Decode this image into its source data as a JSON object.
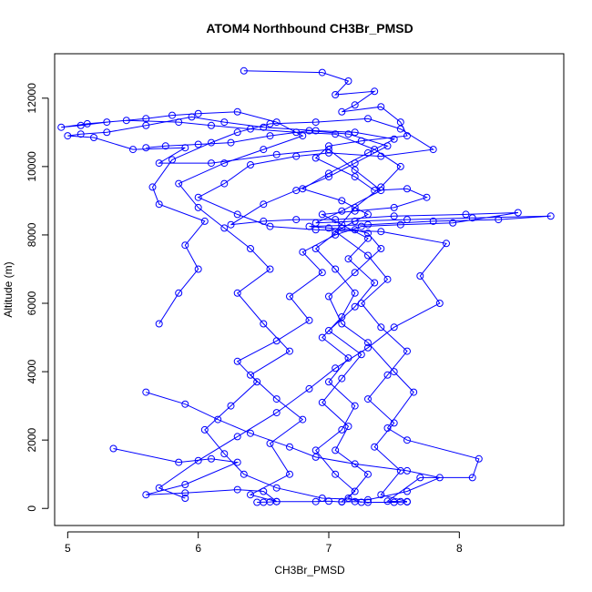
{
  "chart_data": {
    "type": "line",
    "title": "ATOM4 Northbound CH3Br_PMSD",
    "xlabel": "CH3Br_PMSD",
    "ylabel": "Altitude (m)",
    "xlim": [
      4.9,
      8.8
    ],
    "ylim": [
      -500,
      13300
    ],
    "xticks": [
      5,
      6,
      7,
      8
    ],
    "yticks": [
      0,
      2000,
      4000,
      6000,
      8000,
      10000,
      12000
    ],
    "grid": false,
    "legend": "none",
    "series_color": "#0000ff",
    "marker": "open-circle",
    "series": [
      {
        "values": [
          [
            6.5,
            180
          ],
          [
            6.45,
            180
          ],
          [
            6.55,
            190
          ],
          [
            6.6,
            200
          ],
          [
            6.9,
            200
          ],
          [
            7.0,
            210
          ],
          [
            7.1,
            190
          ],
          [
            7.2,
            200
          ],
          [
            7.3,
            180
          ],
          [
            7.5,
            180
          ],
          [
            7.6,
            190
          ],
          [
            7.55,
            200
          ],
          [
            7.45,
            210
          ],
          [
            7.7,
            900
          ],
          [
            8.1,
            900
          ],
          [
            8.15,
            1450
          ],
          [
            7.6,
            2000
          ],
          [
            7.45,
            2350
          ],
          [
            7.65,
            3400
          ],
          [
            7.5,
            4000
          ],
          [
            7.3,
            4850
          ],
          [
            7.1,
            5400
          ],
          [
            7.0,
            6200
          ],
          [
            7.2,
            6900
          ],
          [
            7.4,
            7600
          ],
          [
            7.3,
            8050
          ],
          [
            7.2,
            8150
          ],
          [
            7.0,
            8200
          ],
          [
            6.85,
            8250
          ],
          [
            7.3,
            8300
          ],
          [
            7.8,
            8400
          ],
          [
            8.3,
            8450
          ],
          [
            8.7,
            8550
          ],
          [
            8.1,
            8500
          ],
          [
            7.6,
            8450
          ],
          [
            7.2,
            8400
          ],
          [
            6.9,
            8350
          ],
          [
            7.1,
            8700
          ],
          [
            7.4,
            9300
          ],
          [
            7.2,
            9900
          ],
          [
            7.0,
            10500
          ],
          [
            6.6,
            10350
          ],
          [
            6.1,
            10100
          ],
          [
            5.7,
            10100
          ],
          [
            5.9,
            10550
          ],
          [
            5.5,
            10500
          ],
          [
            5.2,
            10850
          ],
          [
            5.0,
            10900
          ],
          [
            5.1,
            10950
          ],
          [
            5.3,
            11000
          ],
          [
            5.6,
            11200
          ],
          [
            5.95,
            11450
          ],
          [
            6.2,
            11300
          ],
          [
            6.5,
            11150
          ],
          [
            6.9,
            11050
          ],
          [
            7.2,
            11000
          ],
          [
            7.5,
            10800
          ],
          [
            7.3,
            10400
          ],
          [
            7.0,
            9800
          ],
          [
            6.8,
            9350
          ],
          [
            7.1,
            9000
          ],
          [
            7.3,
            8600
          ],
          [
            7.1,
            8200
          ],
          [
            6.9,
            7600
          ],
          [
            7.05,
            7000
          ],
          [
            7.2,
            6300
          ],
          [
            7.1,
            5600
          ],
          [
            6.95,
            5000
          ],
          [
            7.15,
            4400
          ],
          [
            7.0,
            3700
          ],
          [
            7.2,
            3000
          ],
          [
            7.1,
            2300
          ],
          [
            6.9,
            1700
          ],
          [
            7.05,
            1000
          ],
          [
            7.2,
            500
          ],
          [
            7.1,
            200
          ]
        ]
      },
      {
        "values": [
          [
            5.35,
            1750
          ],
          [
            5.85,
            1350
          ],
          [
            6.1,
            1450
          ],
          [
            6.3,
            1350
          ],
          [
            5.9,
            700
          ],
          [
            5.6,
            400
          ],
          [
            5.9,
            450
          ],
          [
            6.3,
            550
          ],
          [
            6.5,
            500
          ],
          [
            6.6,
            200
          ],
          [
            6.4,
            400
          ],
          [
            6.7,
            1000
          ],
          [
            6.55,
            1900
          ],
          [
            6.8,
            2600
          ],
          [
            6.6,
            3200
          ],
          [
            6.4,
            3900
          ],
          [
            6.7,
            4600
          ],
          [
            6.5,
            5400
          ],
          [
            6.3,
            6300
          ],
          [
            6.55,
            7000
          ],
          [
            6.4,
            7600
          ],
          [
            6.2,
            8200
          ],
          [
            6.0,
            8800
          ],
          [
            5.85,
            9500
          ],
          [
            6.2,
            10100
          ],
          [
            6.5,
            10500
          ],
          [
            6.8,
            10900
          ],
          [
            6.6,
            11300
          ],
          [
            6.3,
            11600
          ],
          [
            6.0,
            11550
          ],
          [
            5.8,
            11500
          ],
          [
            5.6,
            11400
          ],
          [
            5.3,
            11300
          ],
          [
            5.1,
            11200
          ],
          [
            4.95,
            11150
          ],
          [
            5.15,
            11250
          ],
          [
            5.45,
            11350
          ],
          [
            5.85,
            11300
          ],
          [
            6.1,
            11200
          ],
          [
            6.4,
            11100
          ],
          [
            6.75,
            11000
          ],
          [
            7.05,
            10950
          ],
          [
            7.35,
            10500
          ],
          [
            7.55,
            10000
          ],
          [
            7.4,
            9400
          ],
          [
            7.2,
            8800
          ],
          [
            7.05,
            8100
          ],
          [
            7.3,
            7400
          ],
          [
            7.45,
            6700
          ],
          [
            7.25,
            6000
          ],
          [
            7.4,
            5300
          ],
          [
            7.6,
            4600
          ],
          [
            7.45,
            3900
          ],
          [
            7.3,
            3200
          ],
          [
            7.5,
            2500
          ],
          [
            7.35,
            1800
          ],
          [
            7.55,
            1100
          ],
          [
            7.4,
            400
          ],
          [
            7.6,
            200
          ]
        ]
      },
      {
        "values": [
          [
            5.7,
            5400
          ],
          [
            5.85,
            6300
          ],
          [
            6.0,
            7000
          ],
          [
            5.9,
            7700
          ],
          [
            6.05,
            8400
          ],
          [
            5.7,
            8900
          ],
          [
            5.65,
            9400
          ],
          [
            5.8,
            10200
          ],
          [
            6.1,
            10700
          ],
          [
            6.3,
            11000
          ],
          [
            6.55,
            11250
          ],
          [
            6.9,
            11300
          ],
          [
            7.3,
            11400
          ],
          [
            7.55,
            11100
          ],
          [
            7.8,
            10500
          ],
          [
            7.4,
            10300
          ],
          [
            7.0,
            10400
          ],
          [
            6.75,
            10300
          ],
          [
            6.4,
            10050
          ],
          [
            6.2,
            9500
          ],
          [
            6.0,
            9100
          ],
          [
            6.3,
            8600
          ],
          [
            6.55,
            8250
          ],
          [
            6.9,
            8150
          ],
          [
            7.4,
            8100
          ],
          [
            7.9,
            7750
          ],
          [
            7.7,
            6800
          ],
          [
            7.85,
            6000
          ],
          [
            7.5,
            5300
          ],
          [
            7.3,
            4700
          ],
          [
            7.05,
            4100
          ],
          [
            6.85,
            3500
          ],
          [
            6.6,
            2800
          ],
          [
            6.3,
            2100
          ],
          [
            6.0,
            1400
          ],
          [
            5.7,
            600
          ],
          [
            5.9,
            300
          ]
        ]
      },
      {
        "values": [
          [
            6.35,
            12800
          ],
          [
            6.95,
            12750
          ],
          [
            7.15,
            12500
          ],
          [
            7.05,
            12100
          ],
          [
            7.35,
            12200
          ],
          [
            7.2,
            11800
          ],
          [
            7.1,
            11600
          ],
          [
            7.4,
            11750
          ],
          [
            7.55,
            11300
          ],
          [
            7.6,
            10900
          ],
          [
            7.25,
            10750
          ],
          [
            7.0,
            10600
          ],
          [
            6.9,
            10250
          ],
          [
            7.2,
            9700
          ],
          [
            7.35,
            9300
          ],
          [
            7.6,
            9350
          ],
          [
            7.75,
            9100
          ],
          [
            7.5,
            8800
          ],
          [
            7.2,
            8700
          ],
          [
            6.95,
            8600
          ],
          [
            7.1,
            8300
          ],
          [
            7.3,
            7900
          ],
          [
            7.15,
            7300
          ],
          [
            7.35,
            6600
          ],
          [
            7.2,
            5900
          ],
          [
            7.0,
            5200
          ],
          [
            7.25,
            4500
          ],
          [
            7.1,
            3800
          ],
          [
            6.95,
            3100
          ],
          [
            7.15,
            2400
          ],
          [
            7.05,
            1700
          ],
          [
            7.3,
            1000
          ],
          [
            7.15,
            300
          ],
          [
            7.25,
            180
          ]
        ]
      },
      {
        "values": [
          [
            5.6,
            3400
          ],
          [
            5.9,
            3050
          ],
          [
            6.15,
            2600
          ],
          [
            6.4,
            2200
          ],
          [
            6.7,
            1800
          ],
          [
            6.9,
            1500
          ],
          [
            7.2,
            1300
          ],
          [
            7.6,
            1100
          ],
          [
            7.85,
            900
          ],
          [
            7.6,
            500
          ],
          [
            7.3,
            250
          ],
          [
            6.95,
            300
          ],
          [
            6.6,
            600
          ],
          [
            6.35,
            1000
          ],
          [
            6.2,
            1600
          ],
          [
            6.05,
            2300
          ],
          [
            6.25,
            3000
          ],
          [
            6.45,
            3700
          ],
          [
            6.3,
            4300
          ],
          [
            6.6,
            4900
          ],
          [
            6.85,
            5500
          ],
          [
            6.7,
            6200
          ],
          [
            6.95,
            6900
          ],
          [
            6.8,
            7500
          ],
          [
            7.05,
            8000
          ],
          [
            7.25,
            8250
          ],
          [
            7.55,
            8300
          ],
          [
            7.95,
            8350
          ],
          [
            8.45,
            8650
          ],
          [
            8.05,
            8600
          ],
          [
            7.5,
            8550
          ],
          [
            7.05,
            8450
          ],
          [
            6.75,
            8450
          ],
          [
            6.5,
            8400
          ],
          [
            6.25,
            8300
          ],
          [
            6.5,
            8900
          ],
          [
            6.75,
            9300
          ],
          [
            7.0,
            9700
          ],
          [
            7.2,
            10100
          ],
          [
            7.45,
            10600
          ],
          [
            7.15,
            10950
          ],
          [
            6.85,
            11050
          ],
          [
            6.55,
            10900
          ],
          [
            6.25,
            10700
          ],
          [
            6.0,
            10650
          ],
          [
            5.75,
            10600
          ],
          [
            5.6,
            10550
          ]
        ]
      }
    ]
  }
}
